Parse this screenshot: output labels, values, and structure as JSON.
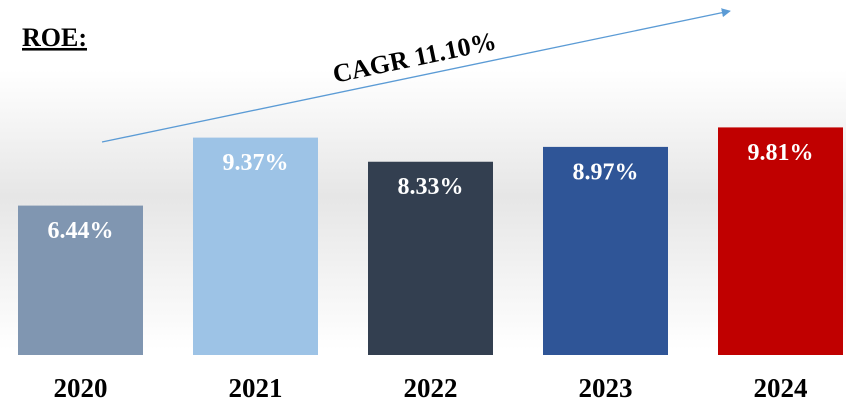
{
  "chart_data": {
    "type": "bar",
    "title": "ROE:",
    "annotation": "CAGR 11.10%",
    "categories": [
      "2020",
      "2021",
      "2022",
      "2023",
      "2024"
    ],
    "values": [
      6.44,
      9.37,
      8.33,
      8.97,
      9.81
    ],
    "value_labels": [
      "6.44%",
      "9.37%",
      "8.33%",
      "8.97%",
      "9.81%"
    ],
    "colors": [
      "#8096b1",
      "#9dc3e6",
      "#333f50",
      "#2f5597",
      "#c00000"
    ]
  }
}
